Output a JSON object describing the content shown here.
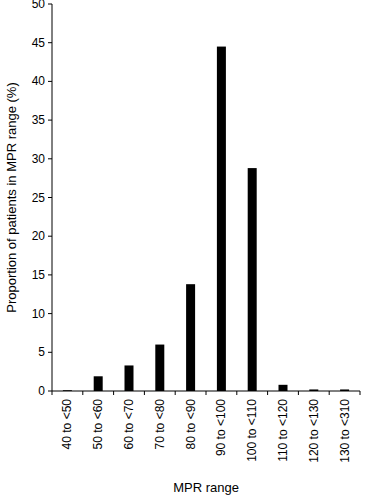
{
  "chart_data": {
    "type": "bar",
    "categories": [
      "40 to <50",
      "50 to <60",
      "60 to <70",
      "70 to <80",
      "80 to <90",
      "90 to <100",
      "100 to <110",
      "110 to <120",
      "120 to <130",
      "130 to <310"
    ],
    "values": [
      0.1,
      1.9,
      3.3,
      6.0,
      13.8,
      44.5,
      28.8,
      0.8,
      0.2,
      0.2
    ],
    "color": "#000000",
    "x_label": "MPR range",
    "y_label": "Proportion of patients in MPR range (%)",
    "ylim": [
      0,
      50
    ],
    "yticks": [
      0,
      5,
      10,
      15,
      20,
      25,
      30,
      35,
      40,
      45,
      50
    ],
    "grid": false
  }
}
